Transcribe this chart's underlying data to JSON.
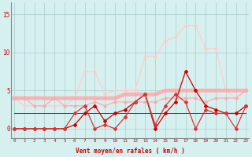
{
  "x": [
    0,
    1,
    2,
    3,
    4,
    5,
    6,
    7,
    8,
    9,
    10,
    11,
    12,
    13,
    14,
    15,
    16,
    17,
    18,
    19,
    20,
    21,
    22,
    23
  ],
  "series_light_top": [
    4.0,
    3.0,
    3.0,
    3.0,
    3.0,
    3.0,
    4.0,
    7.5,
    7.5,
    4.5,
    5.0,
    5.0,
    5.0,
    9.5,
    9.5,
    11.5,
    12.0,
    13.5,
    13.5,
    10.5,
    10.5,
    5.0,
    4.0,
    5.0
  ],
  "series_salmon_flat": [
    4.0,
    4.0,
    4.0,
    4.0,
    4.0,
    4.0,
    4.0,
    4.0,
    4.0,
    4.0,
    4.0,
    4.5,
    4.5,
    4.5,
    4.5,
    5.0,
    5.0,
    5.0,
    5.0,
    5.0,
    5.0,
    5.0,
    5.0,
    5.0
  ],
  "series_pink_mid": [
    4.0,
    4.0,
    3.0,
    3.0,
    4.0,
    3.0,
    3.0,
    3.0,
    3.5,
    3.0,
    3.5,
    3.5,
    3.5,
    3.5,
    3.5,
    4.0,
    4.0,
    4.0,
    4.0,
    3.5,
    4.0,
    4.0,
    4.0,
    5.0
  ],
  "series_dark_flat": [
    2.0,
    2.0,
    2.0,
    2.0,
    2.0,
    2.0,
    2.0,
    2.0,
    2.0,
    2.0,
    2.0,
    2.0,
    2.0,
    2.0,
    2.0,
    2.0,
    2.0,
    2.0,
    2.0,
    2.0,
    2.0,
    2.0,
    2.0,
    2.0
  ],
  "series_red_jagged1": [
    0.0,
    0.0,
    0.0,
    0.0,
    0.0,
    0.0,
    0.5,
    2.0,
    3.0,
    1.0,
    2.0,
    2.5,
    3.5,
    4.5,
    0.0,
    2.0,
    3.5,
    7.5,
    5.0,
    3.0,
    2.5,
    2.0,
    2.0,
    3.0
  ],
  "series_red_jagged2": [
    0.0,
    0.0,
    0.0,
    0.0,
    0.0,
    0.0,
    2.0,
    3.0,
    0.0,
    0.5,
    0.0,
    1.5,
    3.5,
    4.5,
    0.5,
    3.0,
    4.5,
    3.5,
    0.0,
    2.5,
    2.0,
    2.0,
    0.0,
    3.0
  ],
  "bg_color": "#d6f0f0",
  "grid_color": "#aacccc",
  "color_dark_red": "#cc0000",
  "color_med_red": "#dd3333",
  "color_light_pink": "#ffaaaa",
  "color_salmon": "#ff9090",
  "color_pale_pink": "#ffcccc",
  "xlabel": "Vent moyen/en rafales ( km/h )",
  "yticks": [
    0,
    5,
    10,
    15
  ],
  "xlim": [
    -0.3,
    23.3
  ],
  "ylim": [
    -1.2,
    16.5
  ]
}
